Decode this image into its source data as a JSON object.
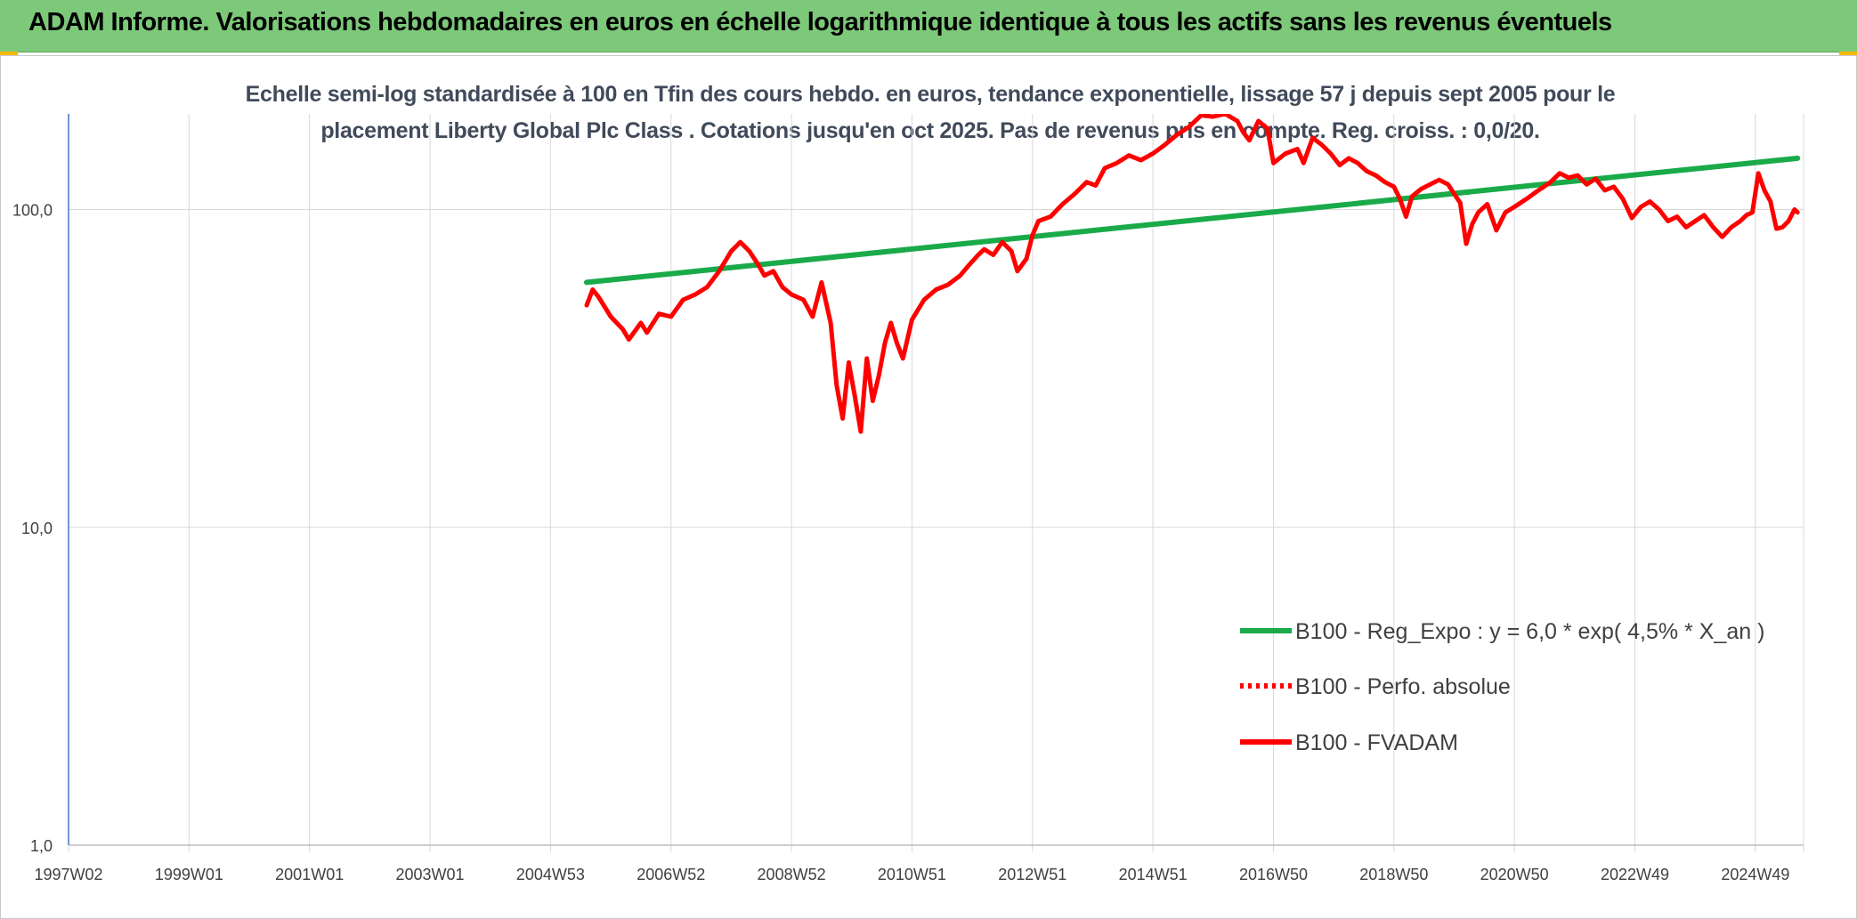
{
  "header": {
    "title": "ADAM Informe. Valorisations hebdomadaires en euros en échelle logarithmique identique à tous les actifs sans les revenus éventuels"
  },
  "chart_data": {
    "type": "line",
    "subtitle_line1": "Echelle semi-log standardisée à 100 en Tfin des cours hebdo. en euros, tendance exponentielle, lissage 57 j depuis sept 2005 pour le",
    "subtitle_line2": "placement Liberty Global Plc Class . Cotations jusqu'en oct 2025. Pas de revenus pris en compte. Reg. croiss. : 0,0/20.",
    "y_scale": "log",
    "ylim": [
      1,
      200
    ],
    "y_ticks": [
      {
        "value": 1,
        "label": "1,0"
      },
      {
        "value": 10,
        "label": "10,0"
      },
      {
        "value": 100,
        "label": "100,0"
      }
    ],
    "xlim": [
      1997.1,
      2025.9
    ],
    "x_ticks": [
      {
        "value": 1997.1,
        "label": "1997W02"
      },
      {
        "value": 1999.1,
        "label": "1999W01"
      },
      {
        "value": 2001.1,
        "label": "2001W01"
      },
      {
        "value": 2003.1,
        "label": "2003W01"
      },
      {
        "value": 2005.1,
        "label": "2004W53"
      },
      {
        "value": 2007.1,
        "label": "2006W52"
      },
      {
        "value": 2009.1,
        "label": "2008W52"
      },
      {
        "value": 2011.1,
        "label": "2010W51"
      },
      {
        "value": 2013.1,
        "label": "2012W51"
      },
      {
        "value": 2015.1,
        "label": "2014W51"
      },
      {
        "value": 2017.1,
        "label": "2016W50"
      },
      {
        "value": 2019.1,
        "label": "2018W50"
      },
      {
        "value": 2021.1,
        "label": "2020W50"
      },
      {
        "value": 2023.1,
        "label": "2022W49"
      },
      {
        "value": 2025.1,
        "label": "2024W49"
      }
    ],
    "grid": "vertical and horizontal",
    "legend_position": "bottom-right",
    "series": [
      {
        "name": "B100 - Reg_Expo : y = 6,0 * exp( 4,5% *  X_an )",
        "style": "solid",
        "color": "#1aaa4a",
        "points": [
          [
            2005.7,
            59
          ],
          [
            2025.8,
            145
          ]
        ]
      },
      {
        "name": "B100 - Perfo. absolue",
        "style": "dotted",
        "color": "#ff0000",
        "points": []
      },
      {
        "name": "B100 - FVADAM",
        "style": "solid",
        "color": "#ff0000",
        "points": [
          [
            2005.7,
            50
          ],
          [
            2005.8,
            56
          ],
          [
            2005.9,
            53
          ],
          [
            2006.1,
            46
          ],
          [
            2006.3,
            42
          ],
          [
            2006.4,
            39
          ],
          [
            2006.6,
            44
          ],
          [
            2006.7,
            41
          ],
          [
            2006.9,
            47
          ],
          [
            2007.1,
            46
          ],
          [
            2007.3,
            52
          ],
          [
            2007.5,
            54
          ],
          [
            2007.7,
            57
          ],
          [
            2007.9,
            64
          ],
          [
            2008.1,
            74
          ],
          [
            2008.25,
            79
          ],
          [
            2008.4,
            74
          ],
          [
            2008.55,
            67
          ],
          [
            2008.65,
            62
          ],
          [
            2008.8,
            64
          ],
          [
            2008.95,
            57
          ],
          [
            2009.1,
            54
          ],
          [
            2009.3,
            52
          ],
          [
            2009.45,
            46
          ],
          [
            2009.6,
            59
          ],
          [
            2009.75,
            44
          ],
          [
            2009.85,
            28
          ],
          [
            2009.95,
            22
          ],
          [
            2010.05,
            33
          ],
          [
            2010.15,
            26
          ],
          [
            2010.25,
            20
          ],
          [
            2010.35,
            34
          ],
          [
            2010.45,
            25
          ],
          [
            2010.55,
            30
          ],
          [
            2010.65,
            38
          ],
          [
            2010.75,
            44
          ],
          [
            2010.85,
            38
          ],
          [
            2010.95,
            34
          ],
          [
            2011.1,
            45
          ],
          [
            2011.3,
            52
          ],
          [
            2011.5,
            56
          ],
          [
            2011.7,
            58
          ],
          [
            2011.9,
            62
          ],
          [
            2012.05,
            67
          ],
          [
            2012.2,
            72
          ],
          [
            2012.3,
            75
          ],
          [
            2012.45,
            72
          ],
          [
            2012.6,
            79
          ],
          [
            2012.75,
            74
          ],
          [
            2012.85,
            64
          ],
          [
            2013.0,
            70
          ],
          [
            2013.1,
            83
          ],
          [
            2013.2,
            92
          ],
          [
            2013.4,
            95
          ],
          [
            2013.6,
            104
          ],
          [
            2013.8,
            112
          ],
          [
            2014.0,
            122
          ],
          [
            2014.15,
            119
          ],
          [
            2014.3,
            135
          ],
          [
            2014.5,
            140
          ],
          [
            2014.7,
            148
          ],
          [
            2014.9,
            143
          ],
          [
            2015.1,
            150
          ],
          [
            2015.3,
            160
          ],
          [
            2015.5,
            172
          ],
          [
            2015.7,
            182
          ],
          [
            2015.9,
            198
          ],
          [
            2016.1,
            196
          ],
          [
            2016.3,
            200
          ],
          [
            2016.5,
            190
          ],
          [
            2016.6,
            175
          ],
          [
            2016.7,
            165
          ],
          [
            2016.85,
            190
          ],
          [
            2017.0,
            180
          ],
          [
            2017.1,
            140
          ],
          [
            2017.3,
            150
          ],
          [
            2017.5,
            155
          ],
          [
            2017.6,
            140
          ],
          [
            2017.75,
            168
          ],
          [
            2017.9,
            160
          ],
          [
            2018.05,
            150
          ],
          [
            2018.2,
            138
          ],
          [
            2018.35,
            145
          ],
          [
            2018.5,
            140
          ],
          [
            2018.65,
            132
          ],
          [
            2018.8,
            128
          ],
          [
            2018.95,
            122
          ],
          [
            2019.1,
            118
          ],
          [
            2019.2,
            108
          ],
          [
            2019.3,
            95
          ],
          [
            2019.4,
            110
          ],
          [
            2019.55,
            116
          ],
          [
            2019.7,
            120
          ],
          [
            2019.85,
            124
          ],
          [
            2020.0,
            120
          ],
          [
            2020.1,
            112
          ],
          [
            2020.2,
            105
          ],
          [
            2020.3,
            78
          ],
          [
            2020.4,
            90
          ],
          [
            2020.5,
            98
          ],
          [
            2020.65,
            104
          ],
          [
            2020.8,
            86
          ],
          [
            2020.95,
            98
          ],
          [
            2021.1,
            102
          ],
          [
            2021.3,
            108
          ],
          [
            2021.5,
            115
          ],
          [
            2021.7,
            122
          ],
          [
            2021.85,
            130
          ],
          [
            2022.0,
            126
          ],
          [
            2022.15,
            128
          ],
          [
            2022.3,
            120
          ],
          [
            2022.45,
            125
          ],
          [
            2022.6,
            115
          ],
          [
            2022.75,
            118
          ],
          [
            2022.9,
            108
          ],
          [
            2023.05,
            94
          ],
          [
            2023.2,
            102
          ],
          [
            2023.35,
            106
          ],
          [
            2023.5,
            100
          ],
          [
            2023.65,
            92
          ],
          [
            2023.8,
            95
          ],
          [
            2023.95,
            88
          ],
          [
            2024.1,
            92
          ],
          [
            2024.25,
            96
          ],
          [
            2024.4,
            88
          ],
          [
            2024.55,
            82
          ],
          [
            2024.7,
            88
          ],
          [
            2024.85,
            92
          ],
          [
            2024.95,
            96
          ],
          [
            2025.05,
            98
          ],
          [
            2025.15,
            130
          ],
          [
            2025.25,
            115
          ],
          [
            2025.35,
            106
          ],
          [
            2025.45,
            87
          ],
          [
            2025.55,
            88
          ],
          [
            2025.65,
            92
          ],
          [
            2025.75,
            100
          ],
          [
            2025.8,
            98
          ]
        ]
      }
    ]
  }
}
